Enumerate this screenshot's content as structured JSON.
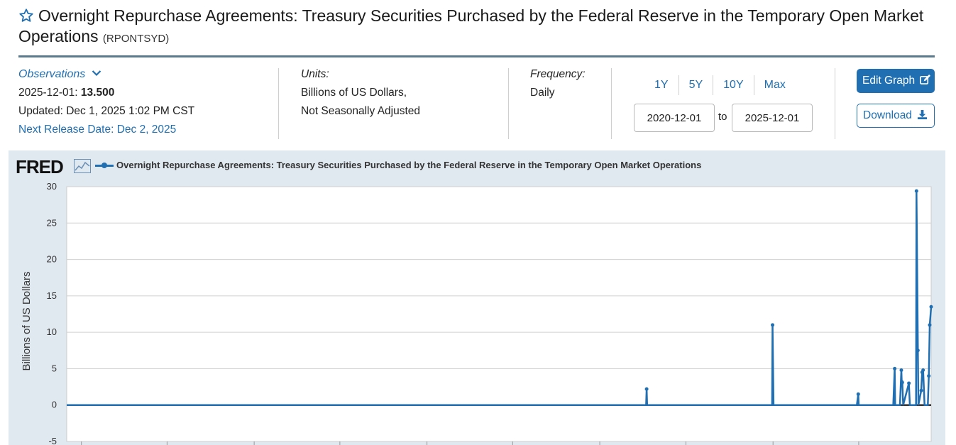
{
  "header": {
    "title": "Overnight Repurchase Agreements: Treasury Securities Purchased by the Federal Reserve in the Temporary Open Market Operations",
    "series_code": "(RPONTSYD)"
  },
  "observations": {
    "label": "Observations",
    "date": "2025-12-01:",
    "value": "13.500",
    "updated": "Updated: Dec 1, 2025 1:02 PM CST",
    "next_release": "Next Release Date: Dec 2, 2025"
  },
  "units": {
    "label": "Units:",
    "line1": "Billions of US Dollars,",
    "line2": "Not Seasonally Adjusted"
  },
  "frequency": {
    "label": "Frequency:",
    "value": "Daily"
  },
  "range": {
    "buttons": [
      "1Y",
      "5Y",
      "10Y",
      "Max"
    ],
    "start": "2020-12-01",
    "to_label": "to",
    "end": "2025-12-01"
  },
  "actions": {
    "edit_graph": "Edit Graph",
    "download": "Download"
  },
  "chart": {
    "logo": "FRED",
    "legend": "Overnight Repurchase Agreements: Treasury Securities Purchased by the Federal Reserve in the Temporary Open Market Operations",
    "accent": "#1f6fb2"
  },
  "chart_data": {
    "type": "line",
    "title": "Overnight Repurchase Agreements: Treasury Securities Purchased by the Federal Reserve in the Temporary Open Market Operations",
    "ylabel": "Billions of US Dollars",
    "xlabel": "",
    "ylim": [
      -5,
      30
    ],
    "yticks": [
      -5,
      0,
      5,
      10,
      15,
      20,
      25,
      30
    ],
    "xlim": [
      "2020-12-01",
      "2025-12-01"
    ],
    "grid": true,
    "series": [
      {
        "name": "Overnight Repurchase Agreements: Treasury Securities Purchased by the Federal Reserve in the Temporary Open Market Operations",
        "color": "#1f6fb2",
        "points": [
          [
            "2020-12-01",
            0
          ],
          [
            "2024-04-08",
            0
          ],
          [
            "2024-04-09",
            2.2
          ],
          [
            "2024-04-10",
            0
          ],
          [
            "2024-12-30",
            0
          ],
          [
            "2024-12-31",
            11.0
          ],
          [
            "2025-01-02",
            0
          ],
          [
            "2025-06-27",
            0
          ],
          [
            "2025-06-30",
            1.5
          ],
          [
            "2025-07-01",
            0
          ],
          [
            "2025-09-12",
            0
          ],
          [
            "2025-09-15",
            5.0
          ],
          [
            "2025-09-16",
            0
          ],
          [
            "2025-09-26",
            0
          ],
          [
            "2025-09-29",
            4.8
          ],
          [
            "2025-09-30",
            3.0
          ],
          [
            "2025-10-01",
            3.1
          ],
          [
            "2025-10-03",
            0
          ],
          [
            "2025-10-15",
            3.0
          ],
          [
            "2025-10-17",
            0
          ],
          [
            "2025-10-30",
            0
          ],
          [
            "2025-10-31",
            29.4
          ],
          [
            "2025-11-03",
            7.5
          ],
          [
            "2025-11-04",
            0
          ],
          [
            "2025-11-10",
            2.0
          ],
          [
            "2025-11-12",
            4.5
          ],
          [
            "2025-11-14",
            4.8
          ],
          [
            "2025-11-17",
            0
          ],
          [
            "2025-11-24",
            0
          ],
          [
            "2025-11-26",
            4.0
          ],
          [
            "2025-11-28",
            11.0
          ],
          [
            "2025-12-01",
            13.5
          ]
        ]
      }
    ]
  }
}
